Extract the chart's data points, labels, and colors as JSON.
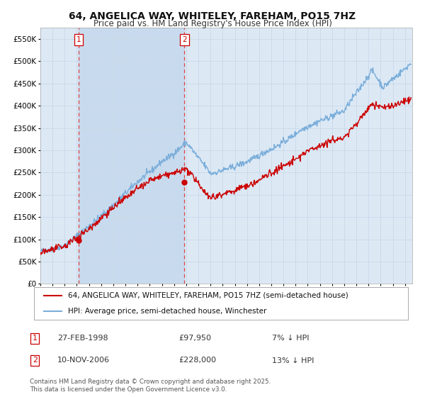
{
  "title": "64, ANGELICA WAY, WHITELEY, FAREHAM, PO15 7HZ",
  "subtitle": "Price paid vs. HM Land Registry's House Price Index (HPI)",
  "legend_property": "64, ANGELICA WAY, WHITELEY, FAREHAM, PO15 7HZ (semi-detached house)",
  "legend_hpi": "HPI: Average price, semi-detached house, Winchester",
  "annotation1_label": "1",
  "annotation1_date": "27-FEB-1998",
  "annotation1_price": "£97,950",
  "annotation1_hpi": "7% ↓ HPI",
  "annotation2_label": "2",
  "annotation2_date": "10-NOV-2006",
  "annotation2_price": "£228,000",
  "annotation2_hpi": "13% ↓ HPI",
  "copyright": "Contains HM Land Registry data © Crown copyright and database right 2025.\nThis data is licensed under the Open Government Licence v3.0.",
  "ylim": [
    0,
    575000
  ],
  "yticks": [
    0,
    50000,
    100000,
    150000,
    200000,
    250000,
    300000,
    350000,
    400000,
    450000,
    500000,
    550000
  ],
  "sale1_year": 1998.15,
  "sale1_value": 97950,
  "sale2_year": 2006.86,
  "sale2_value": 228000,
  "bg_color": "#dce9f5",
  "grid_color": "#c8d8e8",
  "red_line_color": "#cc0000",
  "blue_line_color": "#7aadda",
  "noise_seed": 42,
  "n_points": 730
}
